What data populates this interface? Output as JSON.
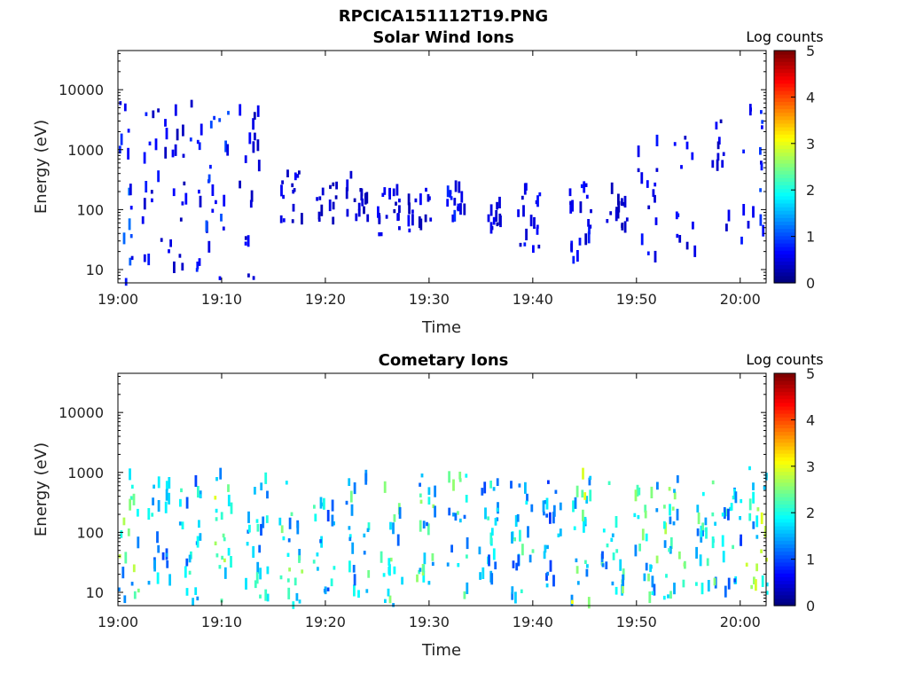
{
  "figure": {
    "filename": "RPCICA151112T19.PNG"
  },
  "chart_data": [
    {
      "type": "heatmap",
      "title": "Solar Wind Ions",
      "xlabel": "Time",
      "ylabel": "Energy (eV)",
      "x_ticks": [
        "19:00",
        "19:10",
        "19:20",
        "19:30",
        "19:40",
        "19:50",
        "20:00"
      ],
      "y_ticks": [
        "10",
        "100",
        "1000",
        "10000"
      ],
      "y_scale": "log",
      "x_range_minutes": [
        0,
        62.5
      ],
      "y_range": [
        6,
        45000
      ],
      "colorbar": {
        "label": "Log counts",
        "ticks": [
          "0",
          "1",
          "2",
          "3",
          "4",
          "5"
        ],
        "range": [
          0,
          5
        ],
        "colormap": "jet"
      },
      "bursts": [
        {
          "t": 0.3,
          "emin": 6,
          "emax": 9000,
          "level": 1.0
        },
        {
          "t": 1.5,
          "emin": 8,
          "emax": 8000,
          "level": 0.8
        },
        {
          "t": 3.5,
          "emin": 6,
          "emax": 9000,
          "level": 0.6
        },
        {
          "t": 5.5,
          "emin": 10,
          "emax": 8000,
          "level": 0.5
        },
        {
          "t": 8.0,
          "emin": 6,
          "emax": 9000,
          "level": 0.7
        },
        {
          "t": 9.5,
          "emin": 6,
          "emax": 7000,
          "level": 0.8
        },
        {
          "t": 12.5,
          "emin": 6,
          "emax": 8000,
          "level": 0.5
        },
        {
          "t": 16.7,
          "emin": 60,
          "emax": 500,
          "level": 0.5
        },
        {
          "t": 20.0,
          "emin": 60,
          "emax": 300,
          "level": 0.4
        },
        {
          "t": 23.0,
          "emin": 60,
          "emax": 400,
          "level": 0.4
        },
        {
          "t": 26.0,
          "emin": 30,
          "emax": 250,
          "level": 0.5
        },
        {
          "t": 29.0,
          "emin": 40,
          "emax": 300,
          "level": 0.5
        },
        {
          "t": 32.5,
          "emin": 60,
          "emax": 250,
          "level": 0.7
        },
        {
          "t": 36.0,
          "emin": 30,
          "emax": 200,
          "level": 0.5
        },
        {
          "t": 39.5,
          "emin": 20,
          "emax": 250,
          "level": 0.6
        },
        {
          "t": 44.5,
          "emin": 10,
          "emax": 300,
          "level": 0.6
        },
        {
          "t": 48.0,
          "emin": 50,
          "emax": 250,
          "level": 0.4
        },
        {
          "t": 51.0,
          "emin": 15,
          "emax": 3000,
          "level": 0.6
        },
        {
          "t": 54.5,
          "emin": 20,
          "emax": 4000,
          "level": 0.6
        },
        {
          "t": 58.0,
          "emin": 40,
          "emax": 3000,
          "level": 0.5
        },
        {
          "t": 61.0,
          "emin": 30,
          "emax": 6000,
          "level": 0.8
        }
      ]
    },
    {
      "type": "heatmap",
      "title": "Cometary Ions",
      "xlabel": "Time",
      "ylabel": "Energy (eV)",
      "x_ticks": [
        "19:00",
        "19:10",
        "19:20",
        "19:30",
        "19:40",
        "19:50",
        "20:00"
      ],
      "y_ticks": [
        "10",
        "100",
        "1000",
        "10000"
      ],
      "y_scale": "log",
      "x_range_minutes": [
        0,
        62.5
      ],
      "y_range": [
        6,
        45000
      ],
      "colorbar": {
        "label": "Log counts",
        "ticks": [
          "0",
          "1",
          "2",
          "3",
          "4",
          "5"
        ],
        "range": [
          0,
          5
        ],
        "colormap": "jet"
      },
      "bursts": [
        {
          "t": 0.8,
          "emin": 6,
          "emax": 1200,
          "level": 2.2
        },
        {
          "t": 3.8,
          "emin": 10,
          "emax": 700,
          "level": 1.6
        },
        {
          "t": 6.8,
          "emin": 6,
          "emax": 800,
          "level": 1.8
        },
        {
          "t": 10.2,
          "emin": 6,
          "emax": 1200,
          "level": 2.3
        },
        {
          "t": 13.3,
          "emin": 8,
          "emax": 800,
          "level": 1.7
        },
        {
          "t": 16.6,
          "emin": 6,
          "emax": 1000,
          "level": 2.1
        },
        {
          "t": 19.8,
          "emin": 10,
          "emax": 700,
          "level": 1.8
        },
        {
          "t": 23.0,
          "emin": 8,
          "emax": 900,
          "level": 2.0
        },
        {
          "t": 26.2,
          "emin": 6,
          "emax": 1000,
          "level": 2.2
        },
        {
          "t": 29.5,
          "emin": 10,
          "emax": 900,
          "level": 2.1
        },
        {
          "t": 32.8,
          "emin": 8,
          "emax": 900,
          "level": 2.0
        },
        {
          "t": 35.8,
          "emin": 15,
          "emax": 700,
          "level": 1.7
        },
        {
          "t": 38.9,
          "emin": 6,
          "emax": 800,
          "level": 1.9
        },
        {
          "t": 41.9,
          "emin": 10,
          "emax": 700,
          "level": 1.7
        },
        {
          "t": 44.7,
          "emin": 6,
          "emax": 1000,
          "level": 2.4
        },
        {
          "t": 47.6,
          "emin": 10,
          "emax": 800,
          "level": 2.0
        },
        {
          "t": 50.8,
          "emin": 8,
          "emax": 800,
          "level": 2.1
        },
        {
          "t": 53.6,
          "emin": 8,
          "emax": 900,
          "level": 2.2
        },
        {
          "t": 56.7,
          "emin": 10,
          "emax": 800,
          "level": 2.0
        },
        {
          "t": 59.2,
          "emin": 10,
          "emax": 700,
          "level": 1.8
        },
        {
          "t": 61.6,
          "emin": 8,
          "emax": 1200,
          "level": 2.3
        }
      ]
    }
  ]
}
